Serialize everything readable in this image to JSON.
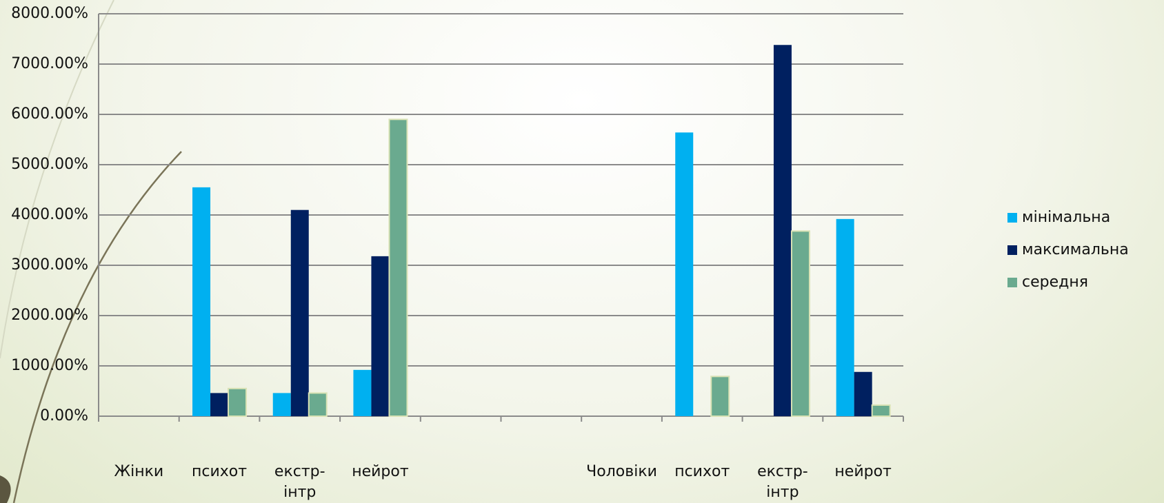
{
  "chart_data": {
    "type": "bar",
    "categories": [
      "Жінки",
      "психот",
      "екстр-інтр",
      "нейрот",
      null,
      null,
      "Чоловіки",
      "психот",
      "екстр-інтр",
      "нейрот"
    ],
    "series": [
      {
        "name": "мінімальна",
        "color": "#00b0f0",
        "values": [
          null,
          4550,
          460,
          920,
          null,
          null,
          null,
          5640,
          null,
          3920
        ]
      },
      {
        "name": "максимальна",
        "color": "#002060",
        "values": [
          null,
          460,
          4100,
          3180,
          null,
          null,
          null,
          null,
          7380,
          880
        ]
      },
      {
        "name": "середня",
        "color": "#6aaa8f",
        "values": [
          null,
          550,
          460,
          5900,
          null,
          null,
          null,
          790,
          3680,
          220
        ]
      }
    ],
    "ylim": [
      0,
      8000
    ],
    "yticks": [
      {
        "value": 0,
        "label": "0.00%"
      },
      {
        "value": 1000,
        "label": "1000.00%"
      },
      {
        "value": 2000,
        "label": "2000.00%"
      },
      {
        "value": 3000,
        "label": "3000.00%"
      },
      {
        "value": 4000,
        "label": "4000.00%"
      },
      {
        "value": 5000,
        "label": "5000.00%"
      },
      {
        "value": 6000,
        "label": "6000.00%"
      },
      {
        "value": 7000,
        "label": "7000.00%"
      },
      {
        "value": 8000,
        "label": "8000.00%"
      }
    ],
    "grid": true,
    "legend": "right"
  }
}
